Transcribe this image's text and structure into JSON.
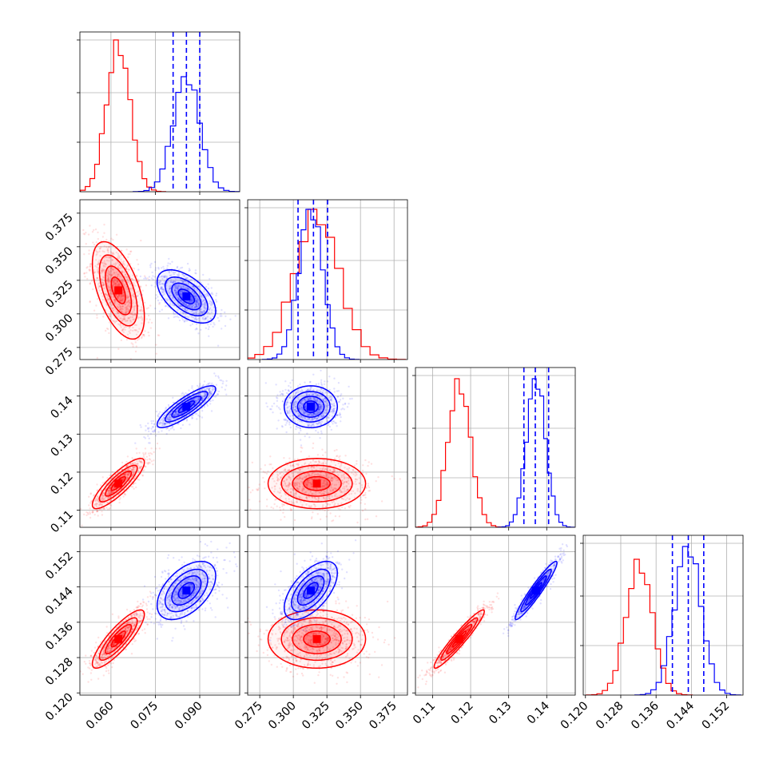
{
  "chart_data": {
    "type": "corner",
    "grid": true,
    "colors": {
      "a": "#ff0000",
      "b": "#0000ff",
      "grid": "#b0b0b0"
    },
    "params": [
      {
        "key": "p0",
        "lim": [
          0.0495,
          0.1035
        ],
        "ticks": [
          {
            "v": 0.06,
            "label": "0.060"
          },
          {
            "v": 0.075,
            "label": "0.075"
          },
          {
            "v": 0.09,
            "label": "0.090"
          }
        ]
      },
      {
        "key": "p1",
        "lim": [
          0.266,
          0.385
        ],
        "ticks": [
          {
            "v": 0.275,
            "label": "0.275"
          },
          {
            "v": 0.3,
            "label": "0.300"
          },
          {
            "v": 0.325,
            "label": "0.325"
          },
          {
            "v": 0.35,
            "label": "0.350"
          },
          {
            "v": 0.375,
            "label": "0.375"
          }
        ]
      },
      {
        "key": "p2",
        "lim": [
          0.1055,
          0.1475
        ],
        "ticks": [
          {
            "v": 0.11,
            "label": "0.11"
          },
          {
            "v": 0.12,
            "label": "0.12"
          },
          {
            "v": 0.13,
            "label": "0.13"
          },
          {
            "v": 0.14,
            "label": "0.14"
          }
        ]
      },
      {
        "key": "p3",
        "lim": [
          0.1195,
          0.1557
        ],
        "ticks": [
          {
            "v": 0.12,
            "label": "0.120"
          },
          {
            "v": 0.128,
            "label": "0.128"
          },
          {
            "v": 0.136,
            "label": "0.136"
          },
          {
            "v": 0.144,
            "label": "0.144"
          },
          {
            "v": 0.152,
            "label": "0.152"
          }
        ]
      }
    ],
    "series": [
      {
        "color_key": "a",
        "mean": [
          0.0625,
          0.3175,
          0.117,
          0.1322
        ],
        "sd": [
          0.004,
          0.0165,
          0.003,
          0.003
        ],
        "corr": [
          [
            1,
            -0.55,
            0.85,
            0.85
          ],
          [
            -0.55,
            1,
            0.0,
            0.0
          ],
          [
            0.85,
            0.0,
            1,
            0.95
          ],
          [
            0.85,
            0.0,
            0.95,
            1
          ]
        ],
        "quantiles": [],
        "hist_peak": [
          0.95,
          0.94,
          0.93,
          0.85
        ]
      },
      {
        "color_key": "b",
        "mean": [
          0.0855,
          0.313,
          0.1372,
          0.1432
        ],
        "sd": [
          0.0045,
          0.009,
          0.0025,
          0.003
        ],
        "corr": [
          [
            1,
            -0.55,
            0.85,
            0.5
          ],
          [
            -0.55,
            1,
            0.0,
            0.6
          ],
          [
            0.85,
            0.0,
            1,
            0.95
          ],
          [
            0.5,
            0.6,
            0.95,
            1
          ]
        ],
        "quantiles": [
          [
            0.081,
            0.0855,
            0.09
          ],
          [
            0.3035,
            0.315,
            0.3255
          ],
          [
            0.134,
            0.137,
            0.1405
          ],
          [
            0.1397,
            0.1433,
            0.1468
          ]
        ],
        "hist_peak": [
          0.72,
          0.94,
          0.93,
          0.93
        ]
      }
    ]
  }
}
